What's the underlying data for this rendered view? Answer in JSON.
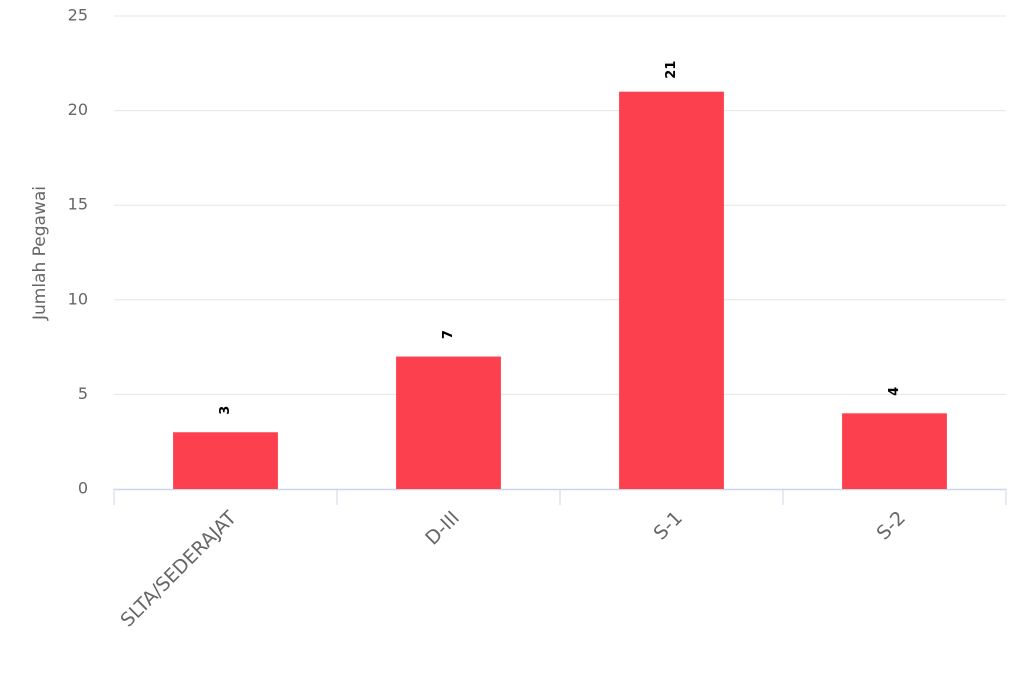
{
  "chart_data": {
    "type": "bar",
    "y_label": "Jumlah Pegawai",
    "categories": [
      "SLTA/SEDERAJAT",
      "D-III",
      "S-1",
      "S-2"
    ],
    "values": [
      3,
      7,
      21,
      4
    ],
    "color": "#fc404d",
    "ylim": [
      0,
      25
    ],
    "yticks": [
      0,
      5,
      10,
      15,
      20,
      25
    ],
    "grid": true,
    "data_labels": true
  }
}
